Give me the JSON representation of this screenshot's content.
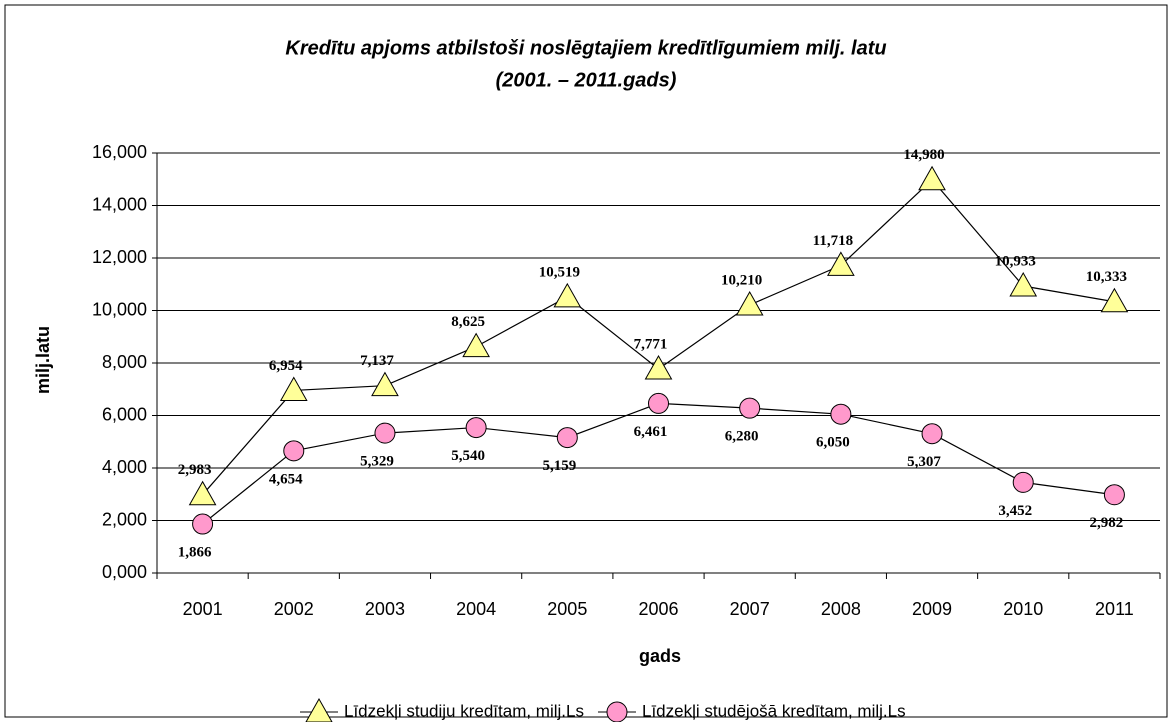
{
  "chart_data": {
    "type": "line",
    "title": "Kredītu apjoms atbilstoši noslēgtajiem kredītlīgumiem milj. latu",
    "subtitle": "(2001. – 2011.gads)",
    "xlabel": "gads",
    "ylabel": "milj.latu",
    "categories": [
      "2001",
      "2002",
      "2003",
      "2004",
      "2005",
      "2006",
      "2007",
      "2008",
      "2009",
      "2010",
      "2011"
    ],
    "series": [
      {
        "name": "Līdzekļi studiju kredītam, milj.Ls",
        "color": "#ffff99",
        "marker": "triangle",
        "values": [
          2983,
          6954,
          7137,
          8625,
          10519,
          7771,
          10210,
          11718,
          14980,
          10933,
          10333
        ],
        "value_labels": [
          "2,983",
          "6,954",
          "7,137",
          "8,625",
          "10,519",
          "7,771",
          "10,210",
          "11,718",
          "14,980",
          "10,933",
          "10,333"
        ]
      },
      {
        "name": "Līdzekļi studējošā kredītam, milj.Ls",
        "color": "#ff99cc",
        "marker": "circle",
        "values": [
          1866,
          4654,
          5329,
          5540,
          5159,
          6461,
          6280,
          6050,
          5307,
          3452,
          2982
        ],
        "value_labels": [
          "1,866",
          "4,654",
          "5,329",
          "5,540",
          "5,159",
          "6,461",
          "6,280",
          "6,050",
          "5,307",
          "3,452",
          "2,982"
        ]
      }
    ],
    "ylim": [
      0,
      16000
    ],
    "yticks": [
      {
        "value": 0,
        "label": "0,000"
      },
      {
        "value": 2000,
        "label": "2,000"
      },
      {
        "value": 4000,
        "label": "4,000"
      },
      {
        "value": 6000,
        "label": "6,000"
      },
      {
        "value": 8000,
        "label": "8,000"
      },
      {
        "value": 10000,
        "label": "10,000"
      },
      {
        "value": 12000,
        "label": "12,000"
      },
      {
        "value": 14000,
        "label": "14,000"
      },
      {
        "value": 16000,
        "label": "16,000"
      }
    ],
    "grid": true,
    "legend": "bottom"
  }
}
